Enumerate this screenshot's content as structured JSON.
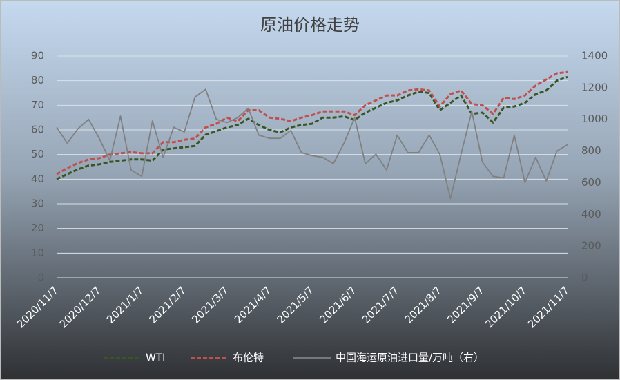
{
  "chart_data": {
    "type": "line",
    "title": "原油价格走势",
    "categories": [
      "2020/11/7",
      null,
      null,
      null,
      "2020/12/7",
      null,
      null,
      null,
      "2021/1/7",
      null,
      null,
      null,
      "2021/2/7",
      null,
      null,
      null,
      "2021/3/7",
      null,
      null,
      null,
      "2021/4/7",
      null,
      null,
      null,
      "2021/5/7",
      null,
      null,
      null,
      "2021/6/7",
      null,
      null,
      null,
      "2021/7/7",
      null,
      null,
      null,
      "2021/8/7",
      null,
      null,
      null,
      "2021/9/7",
      null,
      null,
      null,
      "2021/10/7",
      null,
      null,
      null,
      "2021/11/7"
    ],
    "series": [
      {
        "name": "WTI",
        "color": "#375623",
        "dash": true,
        "values": [
          40,
          42,
          44,
          45.5,
          46,
          47,
          47.5,
          48,
          48,
          47.5,
          52,
          52.5,
          53,
          53.5,
          58,
          59.5,
          61,
          62,
          64.5,
          62,
          60,
          59,
          61,
          62,
          62.5,
          65,
          65,
          65.5,
          64,
          67,
          69,
          71,
          72,
          74,
          75.5,
          75,
          68,
          71,
          74,
          66.5,
          67,
          63,
          69,
          69.5,
          71,
          74.5,
          76,
          80,
          81.5
        ]
      },
      {
        "name": "布伦特",
        "color": "#c0504d",
        "dash": true,
        "values": [
          42,
          44.5,
          46.5,
          48,
          48.5,
          50,
          50.5,
          51,
          50.5,
          50.5,
          55,
          55,
          56,
          56.5,
          61,
          62.5,
          65,
          63.5,
          68,
          68,
          65,
          64.5,
          63.5,
          65,
          66,
          67.5,
          67.5,
          67.5,
          66,
          70,
          72,
          74,
          74,
          76,
          76.5,
          76,
          69.5,
          74.5,
          76,
          70.5,
          70,
          66.5,
          73,
          72.5,
          74,
          78,
          80.5,
          83,
          83.5
        ]
      },
      {
        "name": "中国海运原油进口量/万吨（右）",
        "color": "#808080",
        "dash": false,
        "axis": "y2",
        "values": [
          950,
          850,
          940,
          1000,
          880,
          740,
          1020,
          680,
          640,
          990,
          760,
          950,
          920,
          1140,
          1190,
          1000,
          980,
          1010,
          1070,
          900,
          880,
          880,
          930,
          790,
          770,
          760,
          720,
          850,
          1010,
          720,
          780,
          680,
          900,
          790,
          790,
          900,
          780,
          500,
          780,
          1050,
          730,
          640,
          630,
          900,
          600,
          760,
          610,
          800,
          840
        ]
      }
    ],
    "ylim": [
      0,
      90
    ],
    "yticks": [
      0,
      10,
      20,
      30,
      40,
      50,
      60,
      70,
      80,
      90
    ],
    "y2lim": [
      0,
      1400
    ],
    "y2ticks": [
      0,
      200,
      400,
      600,
      800,
      1000,
      1200,
      1400
    ],
    "grid": true
  }
}
